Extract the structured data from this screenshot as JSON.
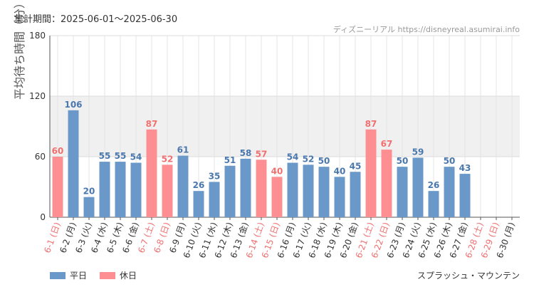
{
  "header": {
    "period": "集計期間：2025-06-01～2025-06-30",
    "source": "ディズニーリアル https://disneyreal.asumirai.info"
  },
  "footer": {
    "attraction": "スプラッシュ・マウンテン"
  },
  "colors": {
    "weekday": "#6a98c8",
    "holiday": "#fd8f93",
    "weekday_text": "#4a78ad",
    "holiday_text": "#f07070",
    "band": "#f0f0f0"
  },
  "chart_data": {
    "type": "bar",
    "ylabel": "平均待ち時間（分）",
    "ylim": [
      0,
      180
    ],
    "yticks": [
      0,
      60,
      120,
      180
    ],
    "shaded_band": [
      60,
      120
    ],
    "legend": [
      "平日",
      "休日"
    ],
    "legend_position": "bottom-left",
    "categories": [
      "6-1 (日)",
      "6-2 (月)",
      "6-3 (火)",
      "6-4 (水)",
      "6-5 (木)",
      "6-6 (金)",
      "6-7 (土)",
      "6-8 (日)",
      "6-9 (月)",
      "6-10 (火)",
      "6-11 (水)",
      "6-12 (木)",
      "6-13 (金)",
      "6-14 (土)",
      "6-15 (日)",
      "6-16 (月)",
      "6-17 (火)",
      "6-18 (水)",
      "6-19 (木)",
      "6-20 (金)",
      "6-21 (土)",
      "6-22 (日)",
      "6-23 (月)",
      "6-24 (火)",
      "6-25 (水)",
      "6-26 (木)",
      "6-27 (金)",
      "6-28 (土)",
      "6-29 (日)",
      "6-30 (月)"
    ],
    "values": [
      60,
      106,
      20,
      55,
      55,
      54,
      87,
      52,
      61,
      26,
      35,
      51,
      58,
      57,
      40,
      54,
      52,
      50,
      40,
      45,
      87,
      67,
      50,
      59,
      26,
      50,
      43,
      null,
      null,
      null
    ],
    "day_type": [
      "休日",
      "平日",
      "平日",
      "平日",
      "平日",
      "平日",
      "休日",
      "休日",
      "平日",
      "平日",
      "平日",
      "平日",
      "平日",
      "休日",
      "休日",
      "平日",
      "平日",
      "平日",
      "平日",
      "平日",
      "休日",
      "休日",
      "平日",
      "平日",
      "平日",
      "平日",
      "平日",
      "休日",
      "休日",
      "平日"
    ]
  }
}
